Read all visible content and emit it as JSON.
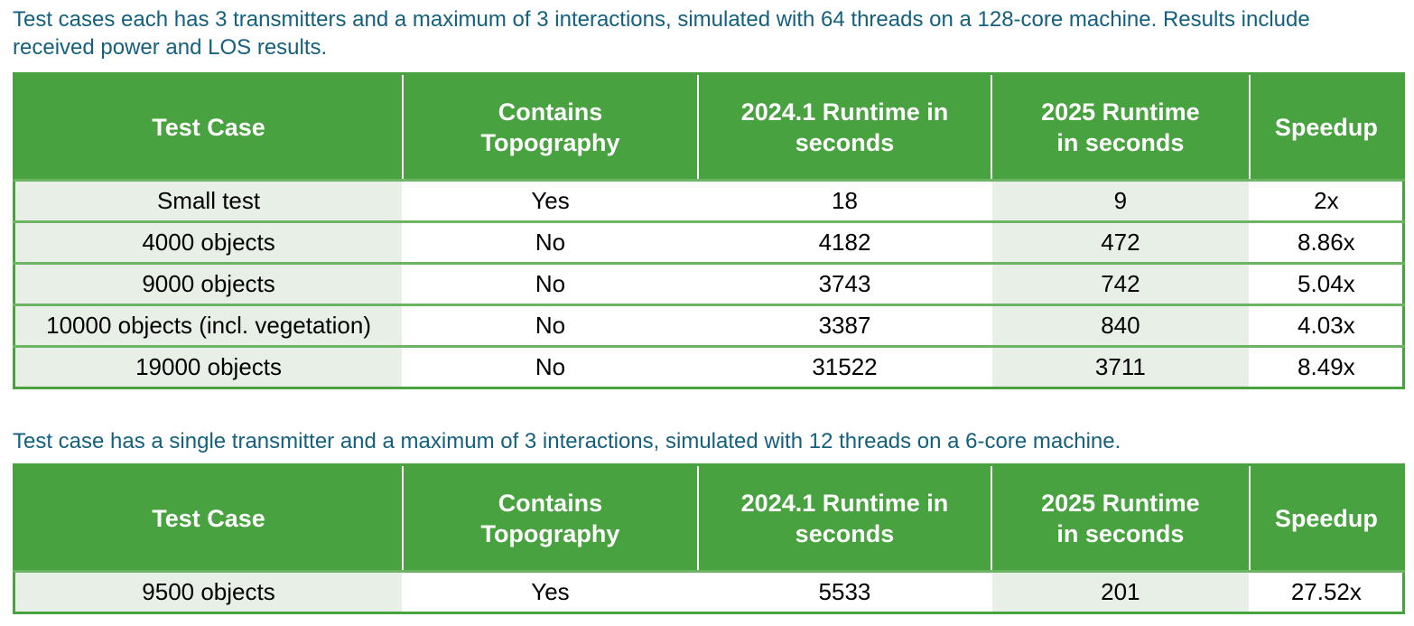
{
  "caption1": "Test cases each has 3 transmitters and a maximum of 3 interactions, simulated with 64 threads on a 128-core machine. Results include received power and LOS results.",
  "caption2": "Test case has a single transmitter and a maximum of 3 interactions, simulated with 12 threads on a 6-core machine.",
  "headers": [
    "Test Case",
    "Contains Topography",
    "2024.1 Runtime in seconds",
    "2025 Runtime in seconds",
    "Speedup"
  ],
  "table1": [
    [
      "Small test",
      "Yes",
      "18",
      "9",
      "2x"
    ],
    [
      "4000 objects",
      "No",
      "4182",
      "472",
      "8.86x"
    ],
    [
      "9000 objects",
      "No",
      "3743",
      "742",
      "5.04x"
    ],
    [
      "10000 objects (incl. vegetation)",
      "No",
      "3387",
      "840",
      "4.03x"
    ],
    [
      "19000 objects",
      "No",
      "31522",
      "3711",
      "8.49x"
    ]
  ],
  "table2": [
    [
      "9500 objects",
      "Yes",
      "5533",
      "201",
      "27.52x"
    ]
  ],
  "colors": {
    "header_green": "#48a23f",
    "caption": "#14607e",
    "shaded_cell": "#e8efe6"
  }
}
